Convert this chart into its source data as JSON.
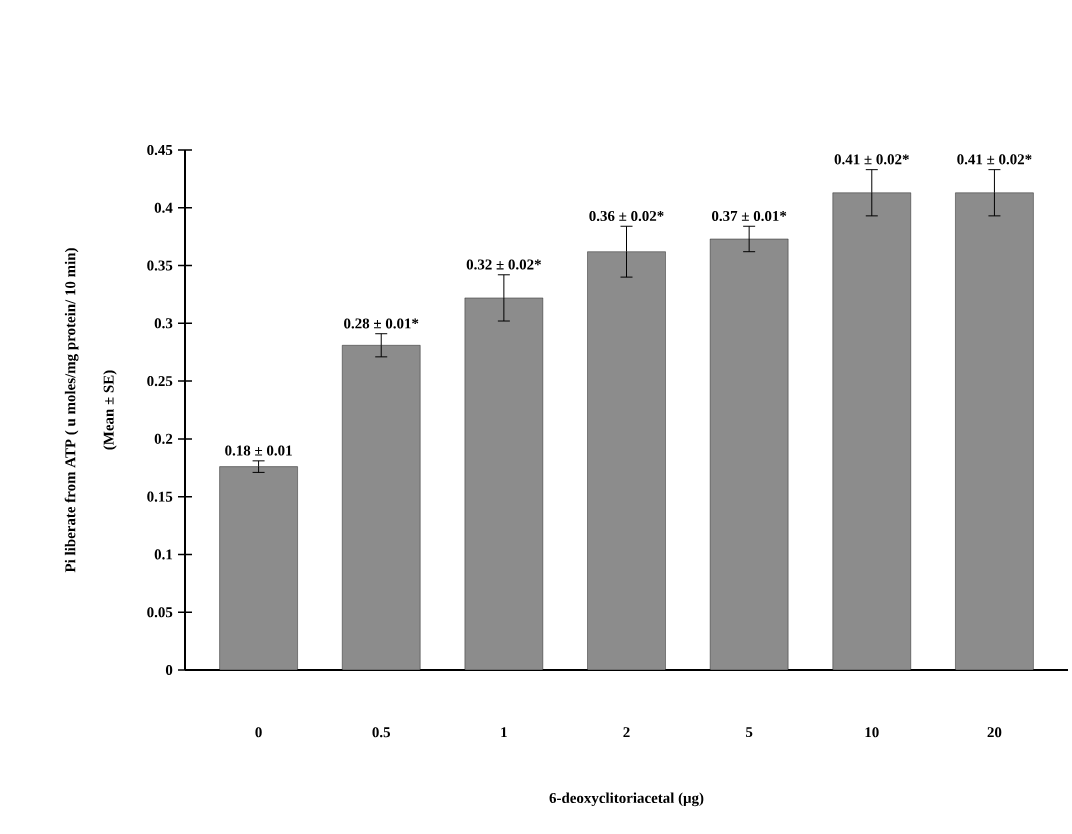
{
  "chart_data": {
    "type": "bar",
    "xlabel": "6-deoxyclitoriacetal (μg)",
    "ylabel": "Pi liberate from ATP ( u moles/mg protein/ 10 min)",
    "annotations": [
      "(Mean ± SE)"
    ],
    "categories": [
      "0",
      "0.5",
      "1",
      "2",
      "5",
      "10",
      "20"
    ],
    "values": [
      0.176,
      0.281,
      0.322,
      0.362,
      0.373,
      0.413,
      0.413
    ],
    "errors": [
      0.005,
      0.01,
      0.02,
      0.022,
      0.011,
      0.02,
      0.02
    ],
    "value_labels": [
      "0.18 ± 0.01",
      "0.28 ± 0.01*",
      "0.32 ± 0.02*",
      "0.36 ± 0.02*",
      "0.37 ± 0.01*",
      "0.41 ± 0.02*",
      "0.41 ± 0.02*"
    ],
    "color": "#8c8c8c",
    "ylim": [
      0,
      0.45
    ],
    "yticks": [
      0,
      0.05,
      0.1,
      0.15,
      0.2,
      0.25,
      0.3,
      0.35,
      0.4,
      0.45
    ]
  }
}
